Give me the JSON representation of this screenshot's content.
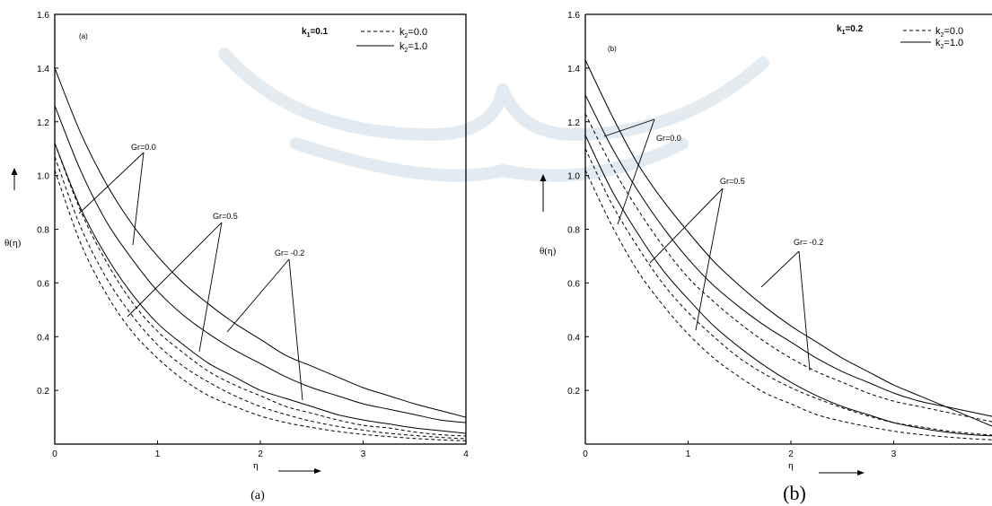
{
  "chart_data": [
    {
      "type": "line",
      "panel_label": "(a)",
      "caption": "(a)",
      "param_label": "k1=0.1",
      "xlabel": "η",
      "ylabel": "θ(η)",
      "xlim": [
        0,
        4
      ],
      "ylim": [
        0,
        1.6
      ],
      "x_ticks": [
        "0",
        "1",
        "2",
        "3",
        "4"
      ],
      "y_ticks": [
        "0.2",
        "0.4",
        "0.6",
        "0.8",
        "1.0",
        "1.2",
        "1.4",
        "1.6"
      ],
      "legend": [
        {
          "label": "k2=0.0",
          "style": "dashed"
        },
        {
          "label": "k2=1.0",
          "style": "solid"
        }
      ],
      "annotations": [
        "Gr=0.0",
        "Gr=0.5",
        "Gr= -0.2"
      ],
      "x": [
        0,
        0.25,
        0.5,
        0.75,
        1.0,
        1.25,
        1.5,
        1.75,
        2.0,
        2.25,
        2.5,
        2.75,
        3.0,
        3.25,
        3.5,
        3.75,
        4.0
      ],
      "series": [
        {
          "style": "solid",
          "group": "Gr=-0.2",
          "values": [
            1.4,
            1.16,
            0.97,
            0.82,
            0.7,
            0.6,
            0.52,
            0.45,
            0.39,
            0.33,
            0.29,
            0.25,
            0.21,
            0.18,
            0.15,
            0.125,
            0.1
          ]
        },
        {
          "style": "solid",
          "group": "Gr=0.5",
          "values": [
            1.26,
            1.02,
            0.83,
            0.69,
            0.57,
            0.48,
            0.41,
            0.35,
            0.3,
            0.25,
            0.21,
            0.18,
            0.15,
            0.13,
            0.11,
            0.09,
            0.08
          ]
        },
        {
          "style": "solid",
          "group": "Gr=0.0",
          "values": [
            1.12,
            0.88,
            0.7,
            0.56,
            0.45,
            0.37,
            0.3,
            0.25,
            0.2,
            0.17,
            0.14,
            0.11,
            0.09,
            0.075,
            0.06,
            0.05,
            0.04
          ]
        },
        {
          "style": "dashed",
          "group": "Gr=-0.2",
          "values": [
            1.12,
            0.87,
            0.68,
            0.53,
            0.42,
            0.34,
            0.27,
            0.22,
            0.18,
            0.14,
            0.115,
            0.09,
            0.07,
            0.06,
            0.045,
            0.035,
            0.03
          ]
        },
        {
          "style": "dashed",
          "group": "Gr=0.5",
          "values": [
            1.07,
            0.81,
            0.62,
            0.48,
            0.37,
            0.29,
            0.23,
            0.18,
            0.14,
            0.11,
            0.085,
            0.066,
            0.052,
            0.04,
            0.032,
            0.025,
            0.02
          ]
        },
        {
          "style": "dashed",
          "group": "Gr=0.0",
          "values": [
            1.02,
            0.75,
            0.56,
            0.42,
            0.32,
            0.24,
            0.18,
            0.14,
            0.105,
            0.08,
            0.062,
            0.047,
            0.036,
            0.028,
            0.021,
            0.016,
            0.012
          ]
        }
      ]
    },
    {
      "type": "line",
      "panel_label": "(b)",
      "caption": "(b)",
      "param_label": "k1=0.2",
      "xlabel": "η",
      "ylabel": "θ(η)",
      "xlim": [
        0,
        4
      ],
      "ylim": [
        0,
        1.6
      ],
      "x_ticks": [
        "0",
        "1",
        "2",
        "3",
        ""
      ],
      "y_ticks": [
        "0.2",
        "0.4",
        "0.6",
        "0.8",
        "1.0",
        "1.2",
        "1.4",
        "1.6"
      ],
      "legend": [
        {
          "label": "k2=0.0",
          "style": "dashed"
        },
        {
          "label": "k2=1.0",
          "style": "solid"
        }
      ],
      "annotations": [
        "Gr=0.0",
        "Gr=0.5",
        "Gr= -0.2"
      ],
      "x": [
        0,
        0.25,
        0.5,
        0.75,
        1.0,
        1.25,
        1.5,
        1.75,
        2.0,
        2.25,
        2.5,
        2.75,
        3.0,
        3.25,
        3.5,
        3.75,
        4.0
      ],
      "series": [
        {
          "style": "solid",
          "group": "Gr=-0.2",
          "values": [
            1.43,
            1.23,
            1.05,
            0.91,
            0.79,
            0.68,
            0.59,
            0.51,
            0.44,
            0.38,
            0.32,
            0.27,
            0.22,
            0.18,
            0.14,
            0.1,
            0.06
          ]
        },
        {
          "style": "solid",
          "group": "Gr=0.5",
          "values": [
            1.3,
            1.11,
            0.95,
            0.81,
            0.69,
            0.59,
            0.51,
            0.44,
            0.38,
            0.32,
            0.27,
            0.23,
            0.19,
            0.16,
            0.14,
            0.12,
            0.1
          ]
        },
        {
          "style": "solid",
          "group": "Gr=0.0",
          "values": [
            1.15,
            0.95,
            0.79,
            0.65,
            0.54,
            0.44,
            0.36,
            0.29,
            0.23,
            0.18,
            0.14,
            0.11,
            0.08,
            0.06,
            0.045,
            0.035,
            0.03
          ]
        },
        {
          "style": "dashed",
          "group": "Gr=-0.2",
          "values": [
            1.23,
            1.04,
            0.88,
            0.74,
            0.62,
            0.53,
            0.45,
            0.38,
            0.32,
            0.27,
            0.23,
            0.19,
            0.16,
            0.14,
            0.12,
            0.1,
            0.08
          ]
        },
        {
          "style": "dashed",
          "group": "Gr=0.5",
          "values": [
            1.1,
            0.9,
            0.74,
            0.6,
            0.49,
            0.4,
            0.32,
            0.26,
            0.21,
            0.17,
            0.135,
            0.105,
            0.08,
            0.065,
            0.05,
            0.04,
            0.032
          ]
        },
        {
          "style": "dashed",
          "group": "Gr=0.0",
          "values": [
            1.02,
            0.82,
            0.65,
            0.52,
            0.41,
            0.32,
            0.25,
            0.19,
            0.15,
            0.11,
            0.085,
            0.065,
            0.048,
            0.036,
            0.027,
            0.02,
            0.015
          ]
        }
      ]
    }
  ]
}
